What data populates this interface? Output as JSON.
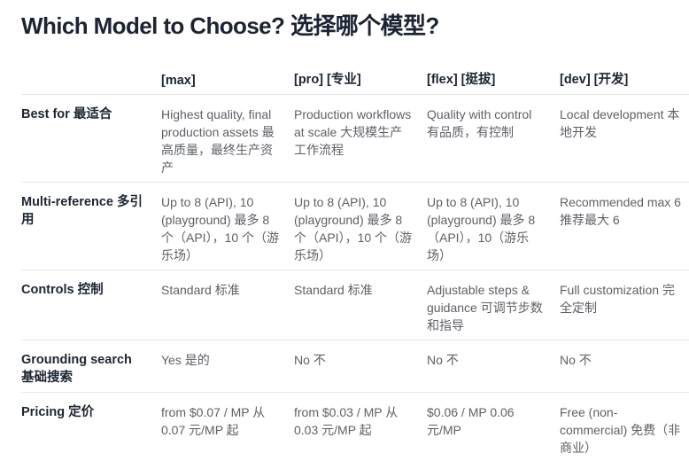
{
  "page": {
    "title": "Which Model to Choose? 选择哪个模型?"
  },
  "table": {
    "headers": [
      "",
      "[max]",
      "[pro] [专业]",
      "[flex] [挺拔]",
      "[dev] [开发]"
    ],
    "rows": [
      {
        "label": "Best for 最适合",
        "cells": [
          "Highest quality, final production assets 最高质量，最终生产资产",
          "Production workflows at scale 大规模生产工作流程",
          "Quality with control 有品质，有控制",
          "Local development 本地开发"
        ]
      },
      {
        "label": "Multi-reference 多引用",
        "cells": [
          "Up to 8 (API), 10 (playground) 最多 8 个（API），10 个（游乐场）",
          "Up to 8 (API), 10 (playground) 最多 8 个（API），10 个（游乐场）",
          "Up to 8 (API), 10 (playground) 最多 8（API），10（游乐场）",
          "Recommended max 6 推荐最大 6"
        ]
      },
      {
        "label": "Controls 控制",
        "cells": [
          "Standard 标准",
          "Standard 标准",
          "Adjustable steps & guidance 可调节步数和指导",
          "Full customization 完全定制"
        ]
      },
      {
        "label": "Grounding search 基础搜索",
        "cells": [
          "Yes 是的",
          "No 不",
          "No 不",
          "No 不"
        ]
      },
      {
        "label": "Pricing 定价",
        "cells": [
          "from $0.07 / MP 从 0.07 元/MP 起",
          "from $0.03 / MP 从 0.03 元/MP 起",
          "$0.06 / MP 0.06 元/MP",
          "Free (non-commercial) 免费（非商业）"
        ]
      }
    ]
  },
  "colors": {
    "heading_text": "#1c2433",
    "body_text": "#5d6167",
    "divider": "#e7e8ea",
    "background": "#ffffff"
  }
}
